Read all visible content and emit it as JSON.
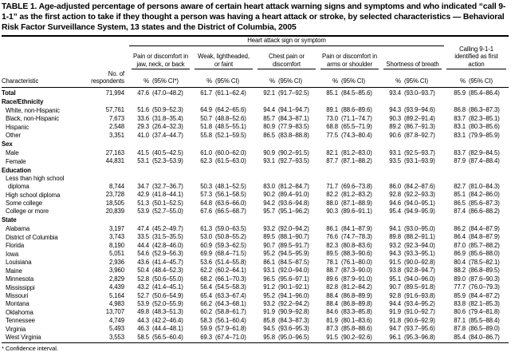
{
  "title": "TABLE 1. Age-adjusted percentage of persons aware of certain heart attack warning signs and symptoms and who indicated “call 9-1-1” as the first action to take if they thought a person was having a heart attack or stroke, by selected characteristics — Behavioral Risk Factor Surveillance System, 13 states and the District of Columbia, 2005",
  "header": {
    "spanner": "Heart attack sign or symptom",
    "characteristic": "Characteristic",
    "respondents_l1": "No. of",
    "respondents_l2": "respondents",
    "groups": [
      {
        "label": "Pain or discomfort in jaw, neck, or back",
        "pct": "%",
        "ci": "(95% CI*)"
      },
      {
        "label": "Weak, lightheaded, or faint",
        "pct": "%",
        "ci": "(95% CI)"
      },
      {
        "label": "Chest pain or discomfort",
        "pct": "%",
        "ci": "(95% CI)"
      },
      {
        "label": "Pain or discomfort in arms or shoulder",
        "pct": "%",
        "ci": "(95% CI)"
      },
      {
        "label": "Shortness of breath",
        "pct": "%",
        "ci": "(95% CI)"
      },
      {
        "label": "Calling 9-1-1 identified as first action",
        "pct": "%",
        "ci": "(95% CI)"
      }
    ]
  },
  "rows": [
    {
      "label": "Total",
      "bold": true,
      "n": "71,994",
      "cells": [
        "47.6",
        "(47.0–48.2)",
        "61.7",
        "(61.1–62.4)",
        "92.1",
        "(91.7–92.5)",
        "85.1",
        "(84.5–85.6)",
        "93.4",
        "(93.0–93.7)",
        "85.9",
        "(85.4–86.4)"
      ]
    },
    {
      "section": "Race/Ethnicity"
    },
    {
      "label": "White, non-Hispanic",
      "indent": 1,
      "n": "57,761",
      "cells": [
        "51.6",
        "(50.9–52.3)",
        "64.9",
        "(64.2–65.6)",
        "94.4",
        "(94.1–94.7)",
        "89.1",
        "(88.6–89.6)",
        "94.3",
        "(93.9–94.6)",
        "86.8",
        "(86.3–87.3)"
      ]
    },
    {
      "label": "Black, non-Hispanic",
      "indent": 1,
      "n": "7,673",
      "cells": [
        "33.6",
        "(31.8–35.4)",
        "50.7",
        "(48.8–52.6)",
        "85.7",
        "(84.3–87.1)",
        "73.0",
        "(71.1–74.7)",
        "90.3",
        "(89.2–91.4)",
        "83.7",
        "(82.3–85.1)"
      ]
    },
    {
      "label": "Hispanic",
      "indent": 1,
      "n": "2,548",
      "cells": [
        "29.3",
        "(26.4–32.3)",
        "51.8",
        "(48.5–55.1)",
        "80.9",
        "(77.9–83.5)",
        "68.8",
        "(65.5–71.9)",
        "89.2",
        "(86.7–91.3)",
        "83.1",
        "(80.3–85.6)"
      ]
    },
    {
      "label": "Other",
      "indent": 1,
      "n": "3,351",
      "cells": [
        "41.0",
        "(37.4–44.7)",
        "55.8",
        "(52.1–59.5)",
        "86.5",
        "(83.8–88.8)",
        "77.5",
        "(74.3–80.4)",
        "90.6",
        "(87.8–92.7)",
        "83.1",
        "(79.9–85.9)"
      ]
    },
    {
      "section": "Sex"
    },
    {
      "label": "Male",
      "indent": 1,
      "n": "27,163",
      "cells": [
        "41.5",
        "(40.5–42.5)",
        "61.0",
        "(60.0–62.0)",
        "90.9",
        "(90.2–91.5)",
        "82.1",
        "(81.2–83.0)",
        "93.1",
        "(92.5–93.7)",
        "83.7",
        "(82.9–84.5)"
      ]
    },
    {
      "label": "Female",
      "indent": 1,
      "n": "44,831",
      "cells": [
        "53.1",
        "(52.3–53.9)",
        "62.3",
        "(61.5–63.0)",
        "93.1",
        "(92.7–93.5)",
        "87.7",
        "(87.1–88.2)",
        "93.5",
        "(93.1–93.9)",
        "87.9",
        "(87.4–88.4)"
      ]
    },
    {
      "section": "Education"
    },
    {
      "label": "Less than high school",
      "label2": "diploma",
      "indent": 1,
      "n": "8,744",
      "cells": [
        "34.7",
        "(32.7–36.7)",
        "50.3",
        "(48.1–52.5)",
        "83.0",
        "(81.2–84.7)",
        "71.7",
        "(69.6–73.8)",
        "86.0",
        "(84.2–87.6)",
        "82.7",
        "(81.0–84.3)"
      ]
    },
    {
      "label": "High school diploma",
      "indent": 1,
      "n": "23,728",
      "cells": [
        "42.9",
        "(41.8–44.1)",
        "57.3",
        "(56.1–58.5)",
        "90.2",
        "(89.4–91.0)",
        "82.2",
        "(81.2–83.2)",
        "92.8",
        "(92.2–93.3)",
        "85.1",
        "(84.2–86.0)"
      ]
    },
    {
      "label": "Some college",
      "indent": 1,
      "n": "18,505",
      "cells": [
        "51.3",
        "(50.1–52.5)",
        "64.8",
        "(63.6–66.0)",
        "94.2",
        "(93.6–94.8)",
        "88.0",
        "(87.1–88.9)",
        "94.6",
        "(94.0–95.1)",
        "86.5",
        "(85.6–87.3)"
      ]
    },
    {
      "label": "College or more",
      "indent": 1,
      "n": "20,839",
      "cells": [
        "53.9",
        "(52.7–55.0)",
        "67.6",
        "(66.5–68.7)",
        "95.7",
        "(95.1–96.2)",
        "90.3",
        "(89.6–91.1)",
        "95.4",
        "(94.9–95.9)",
        "87.4",
        "(86.6–88.2)"
      ]
    },
    {
      "section": "State"
    },
    {
      "label": "Alabama",
      "indent": 1,
      "n": "3,197",
      "cells": [
        "47.4",
        "(45.2–49.7)",
        "61.3",
        "(59.0–63.5)",
        "93.2",
        "(92.0–94.2)",
        "86.1",
        "(84.1–87.9)",
        "94.1",
        "(93.0–95.0)",
        "86.2",
        "(84.4–87.9)"
      ]
    },
    {
      "label": "District of Columbia",
      "indent": 1,
      "n": "3,743",
      "cells": [
        "33.5",
        "(31.5–35.5)",
        "53.0",
        "(50.8–55.2)",
        "89.5",
        "(88.1–90.7)",
        "76.6",
        "(74.7–78.3)",
        "89.8",
        "(88.2–91.1)",
        "86.4",
        "(84.8–87.9)"
      ]
    },
    {
      "label": "Florida",
      "indent": 1,
      "n": "8,190",
      "cells": [
        "44.4",
        "(42.8–46.0)",
        "60.9",
        "(59.3–62.5)",
        "90.7",
        "(89.5–91.7)",
        "82.3",
        "(80.8–83.6)",
        "93.2",
        "(92.3–94.0)",
        "87.0",
        "(85.7–88.2)"
      ]
    },
    {
      "label": "Iowa",
      "indent": 1,
      "n": "5,051",
      "cells": [
        "54.6",
        "(52.9–56.3)",
        "69.9",
        "(68.4–71.5)",
        "95.2",
        "(94.5–95.9)",
        "89.5",
        "(88.3–90.6)",
        "94.3",
        "(93.3–95.1)",
        "86.9",
        "(85.6–88.0)"
      ]
    },
    {
      "label": "Louisiana",
      "indent": 1,
      "n": "2,936",
      "cells": [
        "43.6",
        "(41.4–45.7)",
        "53.6",
        "(51.4–55.8)",
        "86.1",
        "(84.5–87.5)",
        "78.1",
        "(76.1–80.0)",
        "91.5",
        "(90.0–92.8)",
        "80.4",
        "(78.5–82.1)"
      ]
    },
    {
      "label": "Maine",
      "indent": 1,
      "n": "3,960",
      "cells": [
        "50.4",
        "(48.4–52.3)",
        "62.2",
        "(60.2–64.1)",
        "93.1",
        "(92.0–94.0)",
        "88.7",
        "(87.3–90.0)",
        "93.8",
        "(92.8–94.7)",
        "88.2",
        "(86.8–89.5)"
      ]
    },
    {
      "label": "Minnesota",
      "indent": 1,
      "n": "2,829",
      "cells": [
        "52.8",
        "(50.6–55.0)",
        "68.2",
        "(66.1–70.3)",
        "96.5",
        "(95.6–97.1)",
        "89.6",
        "(87.9–91.0)",
        "95.1",
        "(94.0–96.0)",
        "89.0",
        "(87.6–90.3)"
      ]
    },
    {
      "label": "Mississippi",
      "indent": 1,
      "n": "4,439",
      "cells": [
        "43.2",
        "(41.4–45.1)",
        "56.4",
        "(54.5–58.3)",
        "91.2",
        "(90.1–92.1)",
        "82.8",
        "(81.2–84.2)",
        "90.7",
        "(89.5–91.8)",
        "77.7",
        "(76.0–79.3)"
      ]
    },
    {
      "label": "Missouri",
      "indent": 1,
      "n": "5,164",
      "cells": [
        "52.7",
        "(50.6–54.9)",
        "65.4",
        "(63.3–67.4)",
        "95.2",
        "(94.1–96.0)",
        "88.4",
        "(86.8–89.9)",
        "92.8",
        "(91.6–93.8)",
        "85.9",
        "(84.4–87.2)"
      ]
    },
    {
      "label": "Montana",
      "indent": 1,
      "n": "4,983",
      "cells": [
        "53.9",
        "(52.0–55.9)",
        "66.2",
        "(64.3–68.1)",
        "93.2",
        "(92.2–94.2)",
        "88.4",
        "(86.8–89.8)",
        "94.4",
        "(93.4–95.2)",
        "83.8",
        "(82.1–85.3)"
      ]
    },
    {
      "label": "Oklahoma",
      "indent": 1,
      "n": "13,707",
      "cells": [
        "49.8",
        "(48.3–51.3)",
        "60.2",
        "(58.8–61.7)",
        "91.9",
        "(90.9–92.8)",
        "84.6",
        "(83.3–85.8)",
        "91.9",
        "(91.0–92.7)",
        "80.6",
        "(79.4–81.8)"
      ]
    },
    {
      "label": "Tennessee",
      "indent": 1,
      "n": "4,749",
      "cells": [
        "44.3",
        "(42.2–46.4)",
        "58.3",
        "(56.1–60.4)",
        "85.8",
        "(84.3–87.3)",
        "81.9",
        "(80.1–83.6)",
        "91.8",
        "(90.6–92.9)",
        "87.1",
        "(85.5–88.4)"
      ]
    },
    {
      "label": "Virginia",
      "indent": 1,
      "n": "5,493",
      "cells": [
        "46.3",
        "(44.4–48.1)",
        "59.9",
        "(57.9–61.8)",
        "94.5",
        "(93.6–95.3)",
        "87.3",
        "(85.8–88.6)",
        "94.7",
        "(93.7–95.6)",
        "87.8",
        "(86.5–89.0)"
      ]
    },
    {
      "label": "West Virginia",
      "indent": 1,
      "n": "3,553",
      "cells": [
        "58.5",
        "(56.5–60.4)",
        "69.3",
        "(67.4–71.0)",
        "95.8",
        "(95.0–96.5)",
        "91.5",
        "(90.2–92.6)",
        "96.1",
        "(95.3–96.8)",
        "85.4",
        "(84.0–86.7)"
      ]
    }
  ],
  "footnote": "* Confidence interval."
}
